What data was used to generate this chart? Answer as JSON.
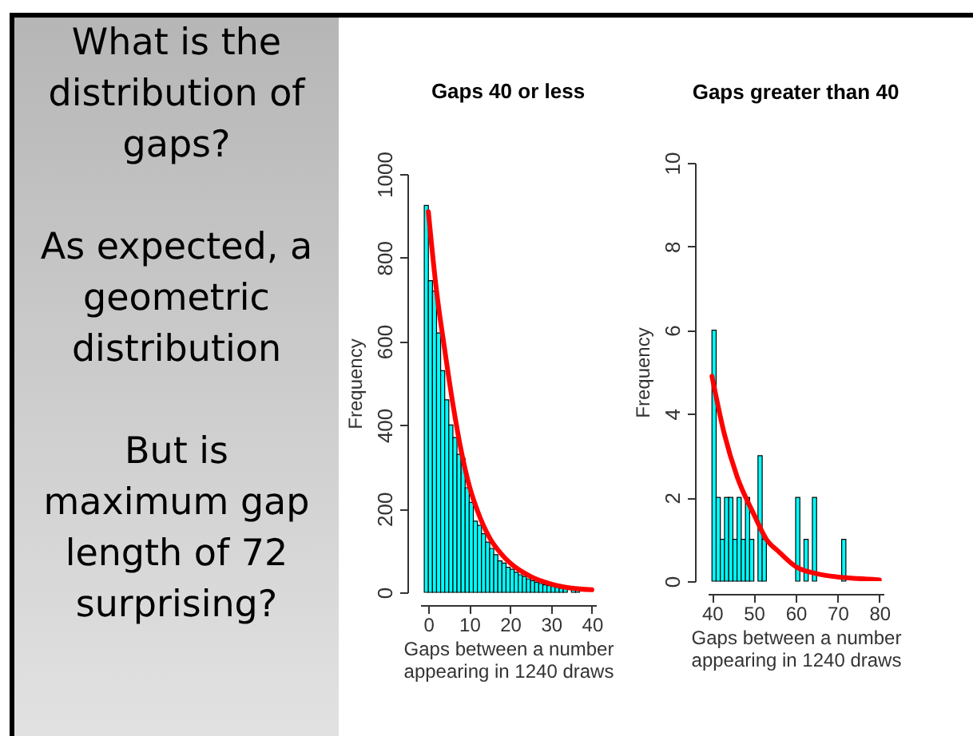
{
  "chart_data": [
    {
      "type": "other",
      "annotations": [
        "What is the distribution of gaps?",
        "As expected, a geometric distribution",
        "But is maximum gap length of 72 surprising?"
      ]
    },
    {
      "type": "histogram",
      "title": "Gaps 40 or less",
      "xlabel": "Gaps between a number\nappearing in 1240 draws",
      "ylabel": "Frequency",
      "color": "#00ffff",
      "bins": [
        -1,
        0,
        1,
        2,
        3,
        4,
        5,
        6,
        7,
        8,
        9,
        10,
        11,
        12,
        13,
        14,
        15,
        16,
        17,
        18,
        19,
        20,
        21,
        22,
        23,
        24,
        25,
        26,
        27,
        28,
        29,
        30,
        31,
        32,
        33,
        34,
        35,
        36,
        37,
        38,
        39,
        40
      ],
      "values": [
        925,
        745,
        720,
        620,
        530,
        460,
        400,
        370,
        330,
        320,
        250,
        215,
        170,
        160,
        140,
        120,
        105,
        90,
        75,
        70,
        60,
        55,
        48,
        42,
        38,
        32,
        28,
        24,
        21,
        18,
        16,
        14,
        12,
        10,
        9,
        null,
        7,
        6,
        null,
        null,
        null
      ],
      "series": [
        {
          "type": "line",
          "color": "#ff0000",
          "x": [
            0,
            2,
            4,
            6,
            8,
            10,
            12,
            15,
            18,
            20,
            25,
            30,
            35,
            40
          ],
          "values": [
            910,
            720,
            580,
            450,
            340,
            255,
            195,
            130,
            90,
            70,
            38,
            20,
            10,
            6
          ]
        }
      ],
      "xlim": [
        -2,
        41
      ],
      "xticks": [
        0,
        10,
        20,
        30,
        40
      ],
      "ylim": [
        0,
        1000
      ],
      "yticks": [
        0,
        200,
        400,
        600,
        800,
        1000
      ]
    },
    {
      "type": "histogram",
      "title": "Gaps greater than 40",
      "xlabel": "Gaps between a number\nappearing in 1240 draws",
      "ylabel": "Frequency",
      "color": "#00ffff",
      "bins": [
        40,
        41,
        42,
        43,
        44,
        45,
        46,
        47,
        48,
        49,
        50,
        51,
        52,
        53,
        54,
        55,
        56,
        57,
        58,
        59,
        60,
        61,
        62,
        63,
        64,
        65,
        66,
        67,
        68,
        69,
        70,
        71,
        72
      ],
      "values": [
        6,
        2,
        1,
        2,
        2,
        1,
        2,
        1,
        2,
        1,
        0,
        3,
        1,
        0,
        0,
        0,
        0,
        0,
        0,
        0,
        2,
        0,
        1,
        0,
        2,
        0,
        0,
        0,
        0,
        0,
        0,
        1
      ],
      "series": [
        {
          "type": "line",
          "color": "#ff0000",
          "x": [
            40,
            43,
            46,
            50,
            53,
            56,
            60,
            65,
            70,
            75,
            80
          ],
          "values": [
            4.9,
            3.5,
            2.5,
            1.6,
            1.0,
            0.7,
            0.35,
            0.18,
            0.1,
            0.06,
            0.03
          ]
        }
      ],
      "xlim": [
        39,
        81
      ],
      "xticks": [
        40,
        50,
        60,
        70,
        80
      ],
      "ylim": [
        0,
        10
      ],
      "yticks": [
        0,
        2,
        4,
        6,
        8,
        10
      ]
    }
  ]
}
